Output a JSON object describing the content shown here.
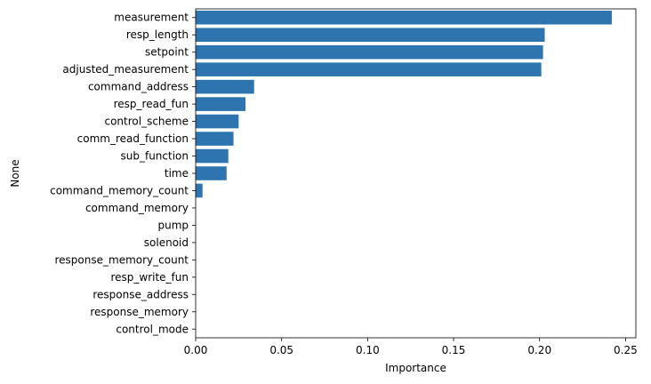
{
  "chart_data": {
    "type": "bar",
    "orientation": "horizontal",
    "xlabel": "Importance",
    "ylabel": "None",
    "xlim": [
      0,
      0.256
    ],
    "xticks": [
      0.0,
      0.05,
      0.1,
      0.15,
      0.2,
      0.25
    ],
    "xtick_labels": [
      "0.00",
      "0.05",
      "0.10",
      "0.15",
      "0.20",
      "0.25"
    ],
    "grid": false,
    "bar_color": "#2e75b0",
    "categories": [
      "measurement",
      "resp_length",
      "setpoint",
      "adjusted_measurement",
      "command_address",
      "resp_read_fun",
      "control_scheme",
      "comm_read_function",
      "sub_function",
      "time",
      "command_memory_count",
      "command_memory",
      "pump",
      "solenoid",
      "response_memory_count",
      "resp_write_fun",
      "response_address",
      "response_memory",
      "control_mode"
    ],
    "values": [
      0.242,
      0.203,
      0.202,
      0.201,
      0.034,
      0.029,
      0.025,
      0.022,
      0.019,
      0.018,
      0.004,
      0,
      0,
      0,
      0,
      0,
      0,
      0,
      0
    ]
  }
}
